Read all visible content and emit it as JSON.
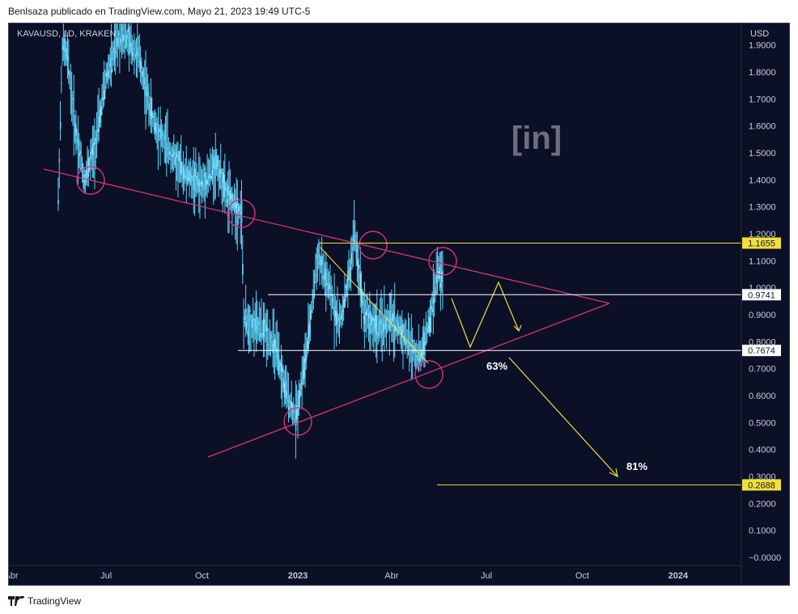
{
  "header": {
    "attribution": "Benlsaza publicado en TradingView.com, Mayo 21, 2023 19:49 UTC-5"
  },
  "footer": {
    "brand": "TradingView"
  },
  "symbol_label": "KAVAUSD, 1D, KRAKEN",
  "currency": "USD",
  "watermark": "[in]",
  "colors": {
    "background": "#0b1027",
    "candles": "#5fd1f5",
    "trendline": "#d6337a",
    "level_lines": "#ffffff",
    "forecast": "#f2e03a",
    "badge": "#f2e03a"
  },
  "chart_data": {
    "type": "line",
    "title": "",
    "xlabel": "",
    "ylabel": "USD",
    "x_ticks": [
      "Abr",
      "Jul",
      "Oct",
      "2023",
      "Abr",
      "Jul",
      "Oct",
      "2024"
    ],
    "y_ticks": [
      "1.9000",
      "1.8000",
      "1.7000",
      "1.6000",
      "1.5000",
      "1.4000",
      "1.3000",
      "1.2000",
      "1.1000",
      "1.0000",
      "0.9000",
      "0.8000",
      "0.7000",
      "0.6000",
      "0.5000",
      "0.4000",
      "0.3000",
      "0.2000",
      "0.1000",
      "−0.0000"
    ],
    "ylim": [
      0.0,
      1.9
    ],
    "series": [
      {
        "x": [
          "2022-05-16",
          "2022-05-20",
          "2022-05-25",
          "2022-06-01",
          "2022-06-10",
          "2022-06-20",
          "2022-07-01",
          "2022-07-15",
          "2022-08-01",
          "2022-08-15",
          "2022-09-01",
          "2022-09-15",
          "2022-10-01",
          "2022-10-15",
          "2022-10-25",
          "2022-11-08",
          "2022-11-10",
          "2022-11-20",
          "2022-12-01",
          "2022-12-10",
          "2022-12-20",
          "2022-12-30",
          "2023-01-10",
          "2023-01-20",
          "2023-02-01",
          "2023-02-10",
          "2023-02-20",
          "2023-02-24",
          "2023-03-05",
          "2023-03-12",
          "2023-03-20",
          "2023-04-01",
          "2023-04-10",
          "2023-04-20",
          "2023-04-28",
          "2023-05-08",
          "2023-05-15",
          "2023-05-21"
        ],
        "values": [
          1.33,
          1.9,
          1.85,
          1.6,
          1.4,
          1.52,
          1.78,
          1.95,
          1.86,
          1.62,
          1.5,
          1.42,
          1.38,
          1.46,
          1.34,
          1.28,
          0.88,
          0.86,
          0.84,
          0.78,
          0.62,
          0.52,
          0.78,
          1.12,
          0.98,
          0.86,
          1.06,
          1.21,
          0.92,
          0.87,
          0.85,
          0.88,
          0.84,
          0.78,
          0.74,
          0.88,
          1.06,
          1.03
        ]
      }
    ],
    "price_labels": [
      "1.1655",
      "0.9741",
      "0.7674",
      "0.2688"
    ],
    "annotations": [
      "63%",
      "81%"
    ],
    "grid": false
  }
}
